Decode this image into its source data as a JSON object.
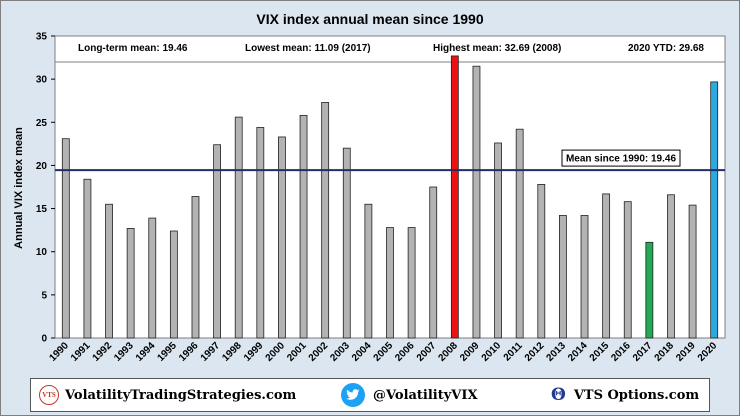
{
  "chart_data": {
    "type": "bar",
    "title": "VIX index annual mean since 1990",
    "ylabel": "Annual VIX index mean",
    "xlabel": "",
    "ylim": [
      0,
      35
    ],
    "yticks": [
      0,
      5,
      10,
      15,
      20,
      25,
      30,
      35
    ],
    "categories": [
      "1990",
      "1991",
      "1992",
      "1993",
      "1994",
      "1995",
      "1996",
      "1997",
      "1998",
      "1999",
      "2000",
      "2001",
      "2002",
      "2003",
      "2004",
      "2005",
      "2006",
      "2007",
      "2008",
      "2009",
      "2010",
      "2011",
      "2012",
      "2013",
      "2014",
      "2015",
      "2016",
      "2017",
      "2018",
      "2019",
      "2020"
    ],
    "values": [
      23.1,
      18.4,
      15.5,
      12.7,
      13.9,
      12.4,
      16.4,
      22.4,
      25.6,
      24.4,
      23.3,
      25.8,
      27.3,
      22.0,
      15.5,
      12.8,
      12.8,
      17.5,
      32.69,
      31.5,
      22.6,
      24.2,
      17.8,
      14.2,
      14.2,
      16.7,
      15.8,
      11.09,
      16.6,
      15.4,
      29.68
    ],
    "bar_colors": {
      "default": "#b3b3b3",
      "2008": "#ee1111",
      "2017": "#22aa55",
      "2020": "#29abe2"
    },
    "mean_line": {
      "value": 19.46,
      "label": "Mean since 1990:  19.46",
      "color": "#1f2d6b"
    },
    "grid": false,
    "plot_background": "#ffffff",
    "chart_background": "#dce6f1"
  },
  "stats": {
    "long_term": "Long-term mean:   19.46",
    "lowest": "Lowest mean:   11.09   (2017)",
    "highest": "Highest mean:   32.69   (2008)",
    "ytd": "2020 YTD:   29.68"
  },
  "footer": {
    "logo_text": "VTS",
    "site": "VolatilityTradingStrategies.com",
    "twitter": "@VolatilityVIX",
    "options": "VTS Options.com",
    "twitter_icon": "bird-icon",
    "options_icon": "theta-icon"
  }
}
